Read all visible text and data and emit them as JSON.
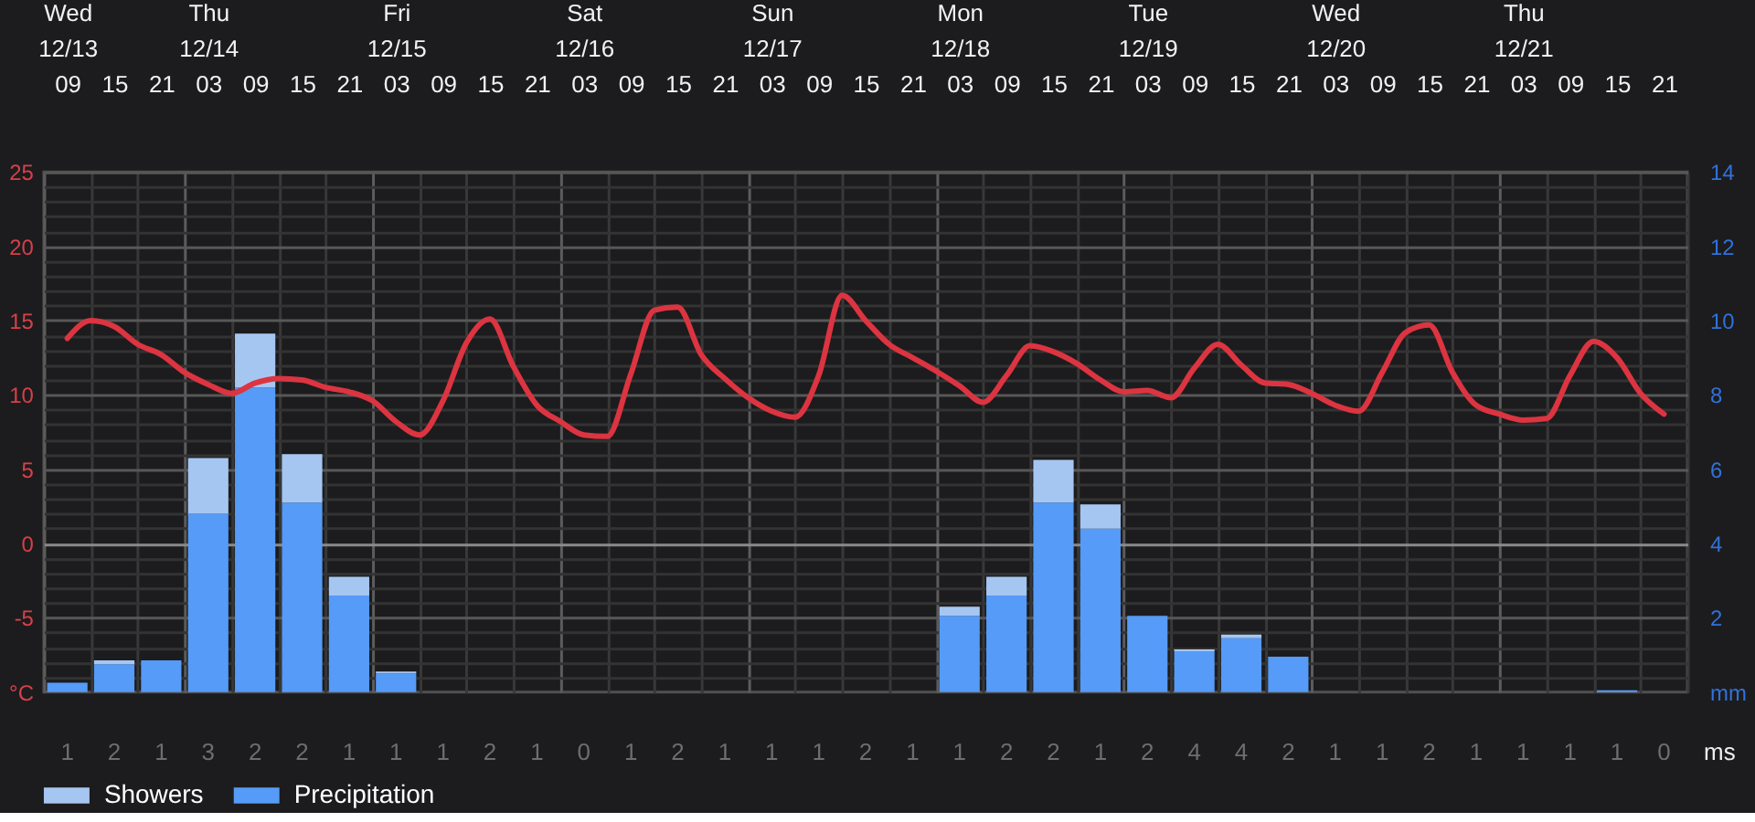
{
  "chart_data": [
    {
      "type": "bar",
      "stacked": true,
      "grid": true,
      "legend": "bottom left",
      "categories": [
        null,
        "Wed 12/13 09",
        null,
        "15",
        null,
        "21",
        null,
        "Thu 12/14 03",
        null,
        "09",
        null,
        "15",
        null,
        "21",
        null,
        "Fri 12/15 03",
        null,
        "09",
        null,
        "15",
        null,
        "21",
        null,
        "Sat 12/16 03",
        null,
        "09",
        null,
        "15",
        null,
        "21",
        null,
        "Sun 12/17 03",
        null,
        "09",
        null,
        "15",
        null,
        "21",
        null,
        "Mon 12/18 03",
        null,
        "09",
        null,
        "15",
        null,
        "21",
        null,
        "Tue 12/19 03",
        null,
        "09",
        null,
        "15",
        null,
        "21",
        null,
        "Wed 12/20 03",
        null,
        "09",
        null,
        "15",
        null,
        "21",
        null,
        "Thu 12/21 03",
        null,
        "09",
        null,
        "15",
        null,
        "21",
        null
      ],
      "ylim": [
        -10,
        25
      ],
      "ylabel": "°C",
      "yticks": [
        {
          "value": -9,
          "label": null
        },
        {
          "value": -8,
          "label": null
        },
        {
          "value": -7,
          "label": null
        },
        {
          "value": -6,
          "label": null
        },
        -5,
        {
          "value": -4,
          "label": null
        },
        {
          "value": -3,
          "label": null
        },
        {
          "value": -2,
          "label": null
        },
        {
          "value": -1,
          "label": null
        },
        0,
        {
          "value": 1,
          "label": null
        },
        {
          "value": 2,
          "label": null
        },
        {
          "value": 3,
          "label": null
        },
        {
          "value": 4,
          "label": null
        },
        5,
        {
          "value": 6,
          "label": null
        },
        {
          "value": 7,
          "label": null
        },
        {
          "value": 8,
          "label": null
        },
        {
          "value": 9,
          "label": null
        },
        10,
        {
          "value": 11,
          "label": null
        },
        {
          "value": 12,
          "label": null
        },
        {
          "value": 13,
          "label": null
        },
        {
          "value": 14,
          "label": null
        },
        15,
        {
          "value": 16,
          "label": null
        },
        {
          "value": 17,
          "label": null
        },
        {
          "value": 18,
          "label": null
        },
        {
          "value": 19,
          "label": null
        },
        20,
        {
          "value": 21,
          "label": null
        },
        {
          "value": 22,
          "label": null
        },
        {
          "value": 23,
          "label": null
        },
        {
          "value": 24,
          "label": null
        },
        25
      ],
      "y2lim": [
        0,
        14
      ],
      "y2label": "mm",
      "y2ticks": [
        2,
        4,
        6,
        8,
        10,
        12,
        14
      ],
      "series": [
        {
          "type": "line",
          "color": "#dc3440",
          "values": [
            null,
            13.8,
            15.0,
            14.6,
            13.4,
            12.7,
            11.5,
            10.7,
            10.1,
            10.8,
            11.1,
            11.0,
            10.5,
            10.2,
            9.6,
            8.2,
            7.3,
            9.6,
            13.5,
            15.1,
            11.9,
            9.3,
            8.2,
            7.3,
            7.2,
            11.4,
            15.7,
            15.9,
            12.7,
            11.1,
            9.8,
            8.9,
            8.5,
            11.3,
            16.7,
            15.0,
            13.4,
            12.5,
            11.6,
            10.6,
            9.5,
            11.3,
            13.3,
            12.9,
            12.1,
            11.0,
            10.2,
            10.3,
            9.8,
            11.8,
            13.4,
            12.0,
            10.8,
            10.7,
            10.1,
            9.3,
            8.9,
            11.5,
            14.2,
            14.7,
            11.5,
            9.3,
            8.7,
            8.3,
            8.4,
            11.3,
            13.6,
            12.5,
            10.1,
            8.7,
            null
          ]
        },
        {
          "name": "Precipitation",
          "color": "#559bf7",
          "axis": "y2",
          "values": [
            null,
            0.25,
            null,
            0.75,
            null,
            0.85,
            null,
            4.8,
            null,
            8.2,
            null,
            5.1,
            null,
            2.6,
            null,
            0.5,
            null,
            null,
            null,
            null,
            null,
            null,
            null,
            null,
            null,
            null,
            null,
            null,
            null,
            null,
            null,
            null,
            null,
            null,
            null,
            null,
            null,
            null,
            null,
            2.05,
            null,
            2.6,
            null,
            5.1,
            null,
            4.4,
            null,
            2.05,
            null,
            1.1,
            null,
            1.45,
            null,
            0.95,
            null,
            null,
            null,
            null,
            null,
            null,
            null,
            null,
            null,
            null,
            null,
            null,
            null,
            0.05,
            null,
            null,
            null
          ]
        },
        {
          "name": "Showers",
          "color": "#a6c6f2",
          "axis": "y2",
          "values": [
            null,
            null,
            null,
            0.1,
            null,
            null,
            null,
            1.5,
            null,
            1.45,
            null,
            1.3,
            null,
            0.5,
            null,
            0.05,
            null,
            null,
            null,
            null,
            null,
            null,
            null,
            null,
            null,
            null,
            null,
            null,
            null,
            null,
            null,
            null,
            null,
            null,
            null,
            null,
            null,
            null,
            null,
            0.25,
            null,
            0.5,
            null,
            1.15,
            null,
            0.65,
            null,
            null,
            null,
            0.05,
            null,
            0.1,
            null,
            null,
            null,
            null,
            null,
            null,
            null,
            null,
            null,
            null,
            null,
            null,
            null,
            null,
            null,
            null,
            null,
            null,
            null
          ]
        }
      ]
    },
    {
      "type": "other",
      "data_labels": true,
      "ylabel": "ms",
      "values": [
        1,
        2,
        1,
        3,
        2,
        2,
        1,
        1,
        1,
        2,
        1,
        0,
        1,
        2,
        1,
        1,
        1,
        2,
        1,
        1,
        2,
        2,
        1,
        2,
        4,
        4,
        2,
        1,
        1,
        2,
        1,
        1,
        1,
        1,
        0
      ]
    }
  ]
}
